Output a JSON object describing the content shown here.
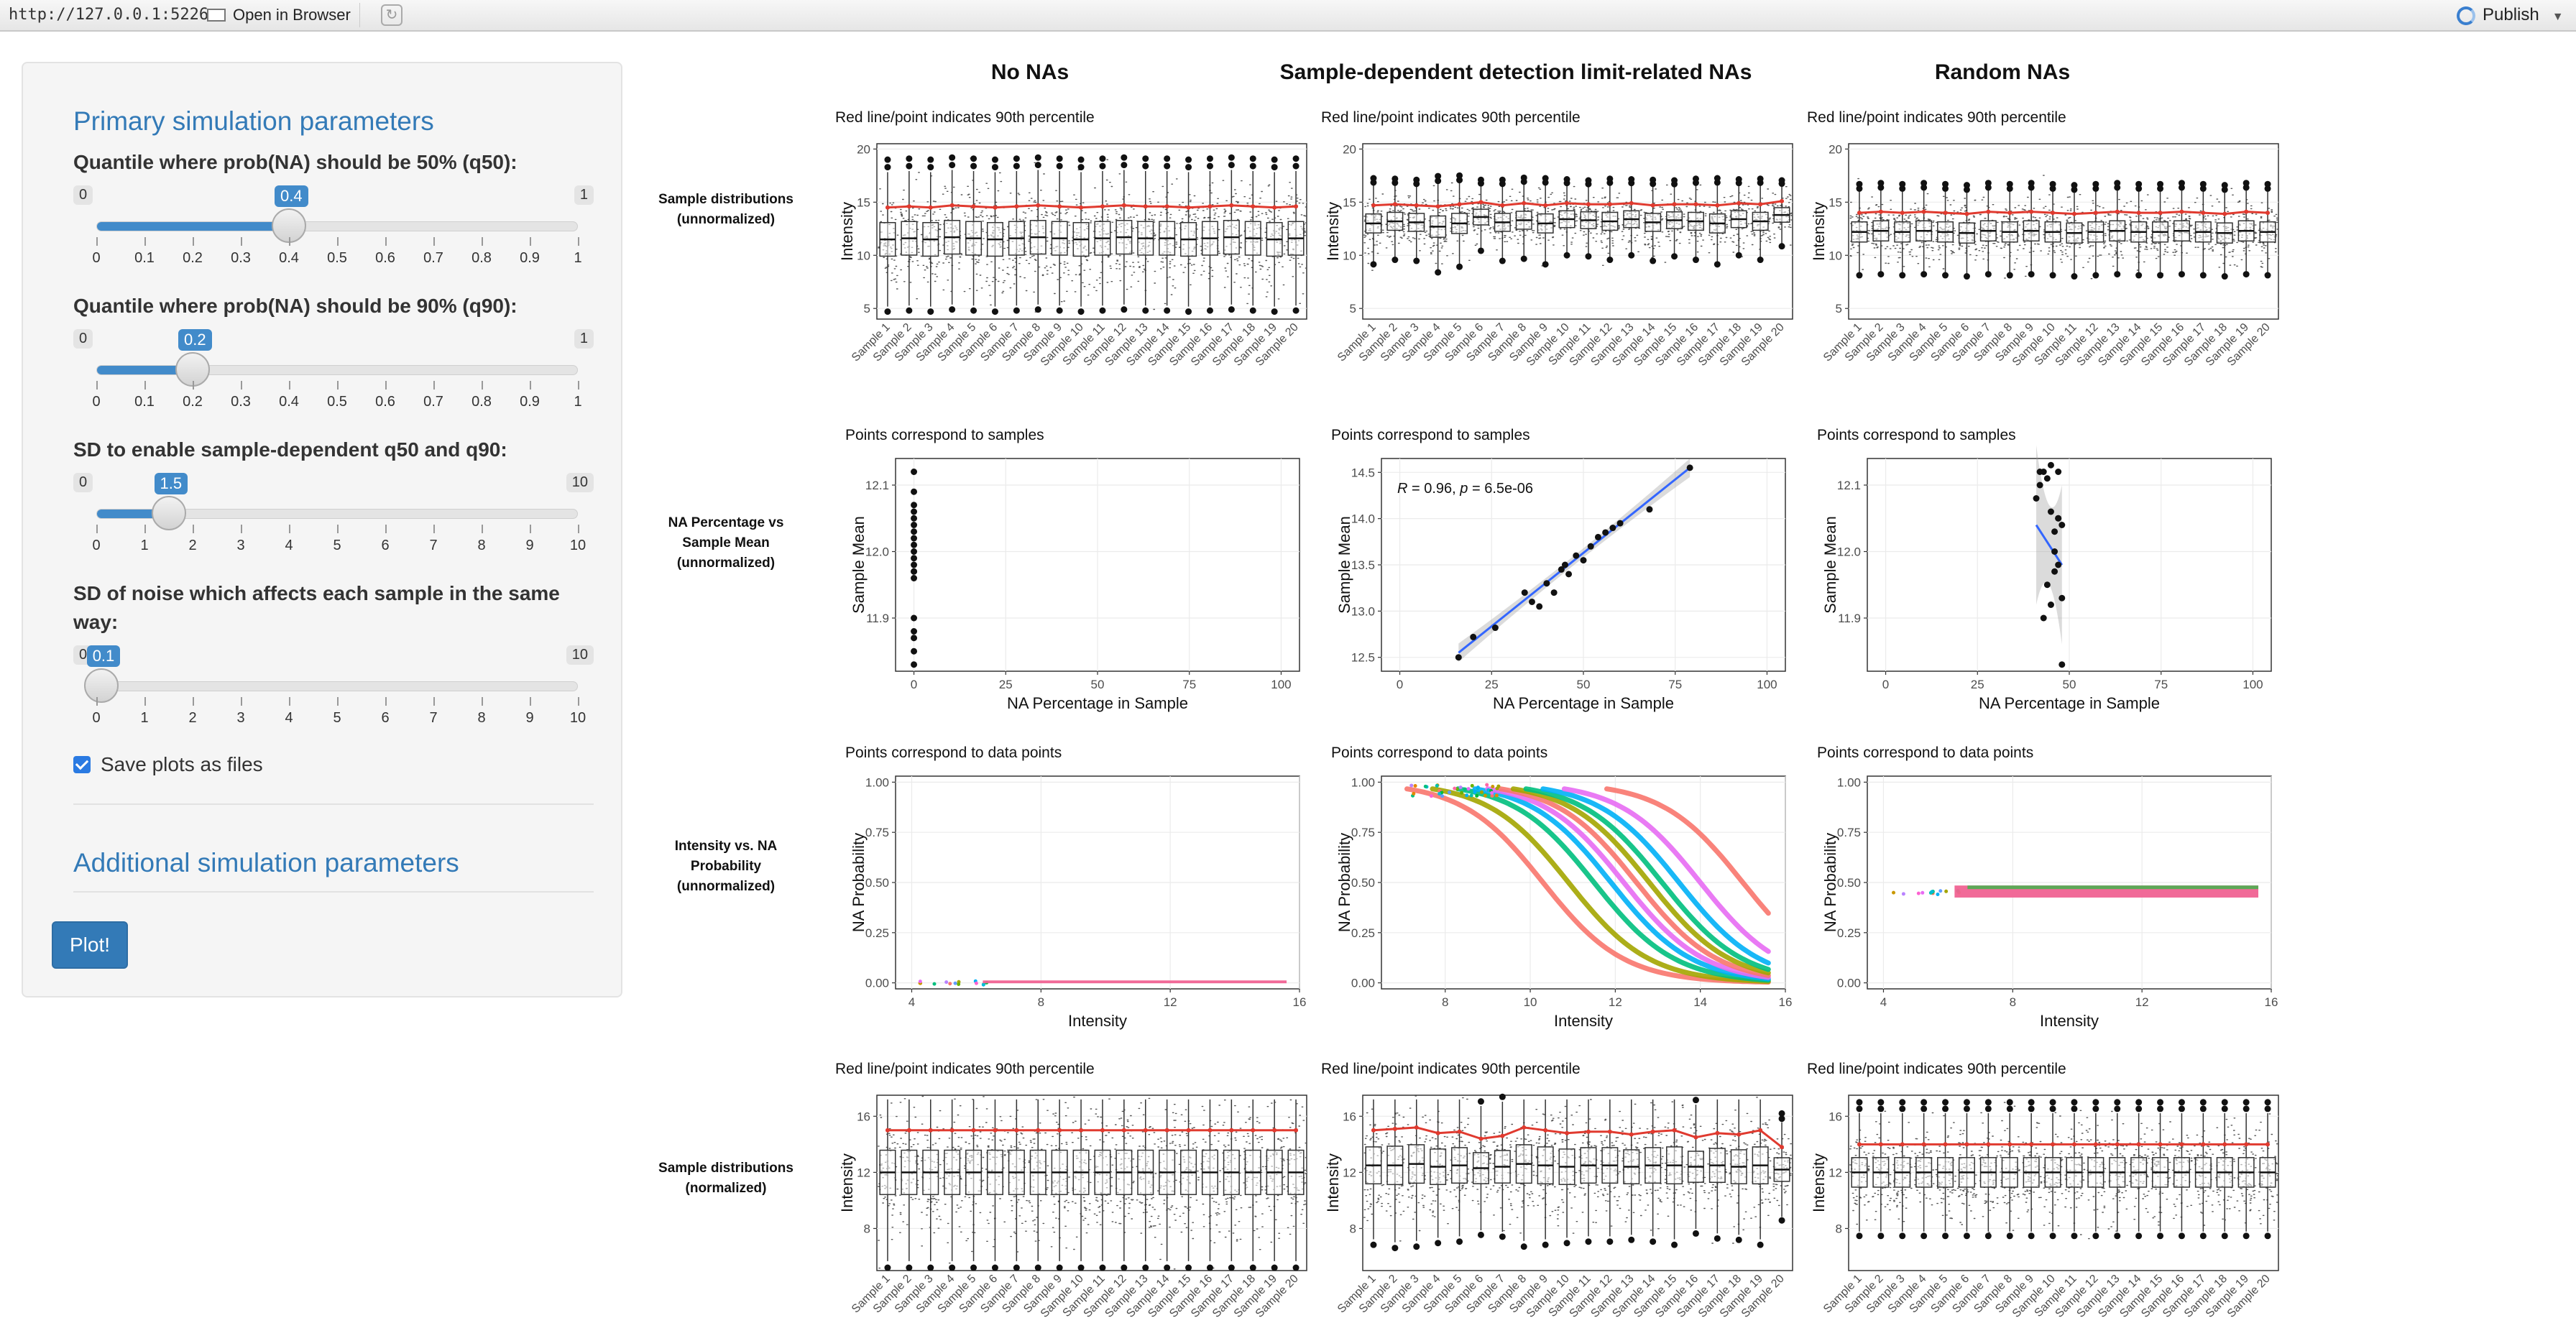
{
  "browser": {
    "url": "http://127.0.0.1:5226",
    "open_in_browser": "Open in Browser",
    "publish": "Publish"
  },
  "sidebar": {
    "primary_title": "Primary simulation parameters",
    "params": [
      {
        "label": "Quantile where prob(NA) should be 50% (q50):",
        "min": "0",
        "max": "1",
        "value": "0.4",
        "value_num": 0.4,
        "range": [
          0,
          1
        ],
        "ticks": [
          "0",
          "0.1",
          "0.2",
          "0.3",
          "0.4",
          "0.5",
          "0.6",
          "0.7",
          "0.8",
          "0.9",
          "1"
        ]
      },
      {
        "label": "Quantile where prob(NA) should be 90% (q90):",
        "min": "0",
        "max": "1",
        "value": "0.2",
        "value_num": 0.2,
        "range": [
          0,
          1
        ],
        "ticks": [
          "0",
          "0.1",
          "0.2",
          "0.3",
          "0.4",
          "0.5",
          "0.6",
          "0.7",
          "0.8",
          "0.9",
          "1"
        ]
      },
      {
        "label": "SD to enable sample-dependent q50 and q90:",
        "min": "0",
        "max": "10",
        "value": "1.5",
        "value_num": 1.5,
        "range": [
          0,
          10
        ],
        "ticks": [
          "0",
          "1",
          "2",
          "3",
          "4",
          "5",
          "6",
          "7",
          "8",
          "9",
          "10"
        ]
      },
      {
        "label": "SD of noise which affects each sample in the same way:",
        "min": "0",
        "max": "10",
        "value": "0.1",
        "value_num": 0.1,
        "range": [
          0,
          10
        ],
        "ticks": [
          "0",
          "1",
          "2",
          "3",
          "4",
          "5",
          "6",
          "7",
          "8",
          "9",
          "10"
        ]
      }
    ],
    "save_plots_label": "Save plots as files",
    "save_plots_checked": true,
    "additional_title": "Additional simulation parameters",
    "plot_button": "Plot!"
  },
  "main": {
    "column_headers": [
      "No NAs",
      "Sample-dependent detection limit-related NAs",
      "Random NAs"
    ],
    "row_labels": [
      "Sample distributions (unnormalized)",
      "NA Percentage vs Sample Mean (unnormalized)",
      "Intensity vs. NA Probability (unnormalized)",
      "Sample distributions (normalized)"
    ],
    "subtitles": {
      "box": "Red line/point indicates 90th percentile",
      "scatter": "Points correspond to samples",
      "prob": "Points correspond to data points"
    },
    "axes": {
      "intensity": "Intensity",
      "sample_mean": "Sample Mean",
      "na_percentage": "NA Percentage in Sample",
      "na_probability": "NA Probability"
    },
    "sample_labels": [
      "Sample 1",
      "Sample 2",
      "Sample 3",
      "Sample 4",
      "Sample 5",
      "Sample 6",
      "Sample 7",
      "Sample 8",
      "Sample 9",
      "Sample 10",
      "Sample 11",
      "Sample 12",
      "Sample 13",
      "Sample 14",
      "Sample 15",
      "Sample 16",
      "Sample 17",
      "Sample 18",
      "Sample 19",
      "Sample 20"
    ],
    "correlation_prefix": "R",
    "correlation_label": " = 0.96, ",
    "correlation_p_prefix": "p",
    "correlation_p_value": " = 6.5e-06"
  },
  "chart_data": [
    {
      "type": "box",
      "row": 1,
      "col": 1,
      "ylim": [
        4,
        20.5
      ],
      "yticks": [
        5,
        10,
        15,
        20
      ],
      "medians": [
        11.5,
        11.6,
        11.5,
        11.7,
        11.6,
        11.5,
        11.6,
        11.7,
        11.6,
        11.5,
        11.6,
        11.7,
        11.6,
        11.6,
        11.5,
        11.6,
        11.7,
        11.6,
        11.5,
        11.6
      ],
      "p90": [
        14.5,
        14.6,
        14.5,
        14.7,
        14.6,
        14.5,
        14.6,
        14.7,
        14.6,
        14.5,
        14.6,
        14.7,
        14.6,
        14.6,
        14.5,
        14.6,
        14.7,
        14.6,
        14.5,
        14.6
      ]
    },
    {
      "type": "box",
      "row": 1,
      "col": 2,
      "ylim": [
        4,
        20.5
      ],
      "yticks": [
        5,
        10,
        15,
        20
      ],
      "medians": [
        13.0,
        13.2,
        13.1,
        12.7,
        13.0,
        13.6,
        13.1,
        13.3,
        13.0,
        13.4,
        13.3,
        13.2,
        13.4,
        13.1,
        13.3,
        13.2,
        13.0,
        13.4,
        13.2,
        13.8
      ],
      "p90": [
        14.7,
        14.8,
        14.7,
        14.6,
        14.8,
        15.0,
        14.7,
        14.9,
        14.7,
        14.9,
        14.8,
        14.8,
        14.9,
        14.7,
        14.8,
        14.8,
        14.7,
        14.9,
        14.8,
        15.1
      ]
    },
    {
      "type": "box",
      "row": 1,
      "col": 3,
      "ylim": [
        4,
        20.5
      ],
      "yticks": [
        5,
        10,
        15,
        20
      ],
      "medians": [
        12.2,
        12.3,
        12.2,
        12.3,
        12.2,
        12.1,
        12.3,
        12.2,
        12.3,
        12.2,
        12.1,
        12.2,
        12.3,
        12.2,
        12.2,
        12.3,
        12.2,
        12.1,
        12.3,
        12.2
      ],
      "p90": [
        14.0,
        14.1,
        14.0,
        14.1,
        14.0,
        13.9,
        14.1,
        14.0,
        14.1,
        14.0,
        13.9,
        14.0,
        14.1,
        14.0,
        14.0,
        14.1,
        14.0,
        13.9,
        14.1,
        14.0
      ]
    },
    {
      "type": "scatter",
      "row": 2,
      "col": 1,
      "xlim": [
        -5,
        105
      ],
      "ylim": [
        11.82,
        12.14
      ],
      "xticks": [
        0,
        25,
        50,
        75,
        100
      ],
      "yticks": [
        11.9,
        12.0,
        12.1
      ],
      "x": [
        0,
        0,
        0,
        0,
        0,
        0,
        0,
        0,
        0,
        0,
        0,
        0,
        0,
        0,
        0,
        0,
        0,
        0,
        0,
        0
      ],
      "y": [
        12.12,
        12.09,
        12.07,
        12.06,
        12.05,
        12.04,
        12.03,
        12.02,
        12.01,
        12.0,
        11.99,
        11.98,
        11.97,
        11.97,
        11.96,
        11.9,
        11.88,
        11.87,
        11.85,
        11.83
      ]
    },
    {
      "type": "scatter",
      "row": 2,
      "col": 2,
      "xlim": [
        -5,
        105
      ],
      "ylim": [
        12.35,
        14.65
      ],
      "xticks": [
        0,
        25,
        50,
        75,
        100
      ],
      "yticks": [
        12.5,
        13.0,
        13.5,
        14.0,
        14.5
      ],
      "x": [
        16,
        20,
        26,
        34,
        36,
        38,
        40,
        42,
        44,
        45,
        46,
        48,
        50,
        52,
        54,
        56,
        58,
        60,
        68,
        79
      ],
      "y": [
        12.5,
        12.72,
        12.82,
        13.2,
        13.1,
        13.05,
        13.3,
        13.2,
        13.45,
        13.5,
        13.4,
        13.6,
        13.55,
        13.7,
        13.8,
        13.85,
        13.9,
        13.95,
        14.1,
        14.55
      ],
      "fit": [
        [
          16,
          12.55
        ],
        [
          79,
          14.55
        ]
      ]
    },
    {
      "type": "scatter",
      "row": 2,
      "col": 3,
      "xlim": [
        -5,
        105
      ],
      "ylim": [
        11.82,
        12.14
      ],
      "xticks": [
        0,
        25,
        50,
        75,
        100
      ],
      "yticks": [
        11.9,
        12.0,
        12.1
      ],
      "x": [
        41,
        42,
        43,
        43,
        44,
        44,
        45,
        45,
        45,
        46,
        46,
        46,
        47,
        47,
        47,
        48,
        48,
        48,
        42,
        47
      ],
      "y": [
        12.08,
        12.1,
        12.12,
        11.9,
        12.11,
        11.95,
        12.13,
        11.92,
        12.06,
        12.03,
        12.0,
        11.97,
        12.12,
        12.05,
        11.98,
        12.04,
        11.93,
        11.83,
        12.12,
        12.05
      ],
      "fit": [
        [
          41,
          12.04
        ],
        [
          48,
          11.98
        ]
      ]
    },
    {
      "type": "line",
      "row": 3,
      "col": 1,
      "xlim": [
        3.5,
        16
      ],
      "ylim": [
        -0.03,
        1.03
      ],
      "xticks": [
        4,
        8,
        12,
        16
      ],
      "yticks": [
        0.0,
        0.25,
        0.5,
        0.75,
        1.0
      ],
      "series": [
        {
          "x": [
            4.2,
            15.6
          ],
          "y": [
            0,
            0
          ]
        }
      ]
    },
    {
      "type": "line",
      "row": 3,
      "col": 2,
      "xlim": [
        6.5,
        16
      ],
      "ylim": [
        -0.03,
        1.03
      ],
      "xticks": [
        8,
        10,
        12,
        14,
        16
      ],
      "yticks": [
        0.0,
        0.25,
        0.5,
        0.75,
        1.0
      ],
      "series": [
        {
          "q50": 10.3
        },
        {
          "q50": 10.9
        },
        {
          "q50": 11.5
        },
        {
          "q50": 11.9
        },
        {
          "q50": 12.2
        },
        {
          "q50": 12.5
        },
        {
          "q50": 12.8
        },
        {
          "q50": 13.1
        },
        {
          "q50": 13.5
        },
        {
          "q50": 14.0
        },
        {
          "q50": 15.0
        }
      ]
    },
    {
      "type": "line",
      "row": 3,
      "col": 3,
      "xlim": [
        3.5,
        16
      ],
      "ylim": [
        -0.03,
        1.03
      ],
      "xticks": [
        4,
        8,
        12,
        16
      ],
      "yticks": [
        0.0,
        0.25,
        0.5,
        0.75,
        1.0
      ],
      "series": [
        {
          "x": [
            4.2,
            15.6
          ],
          "y": [
            0.45,
            0.45
          ]
        }
      ]
    },
    {
      "type": "box",
      "row": 4,
      "col": 1,
      "ylim": [
        5,
        17.5
      ],
      "yticks": [
        8,
        12,
        16
      ],
      "medians": [
        12,
        12,
        12,
        12,
        12,
        12,
        12,
        12,
        12,
        12,
        12,
        12,
        12,
        12,
        12,
        12,
        12,
        12,
        12,
        12
      ],
      "p90": [
        15,
        15,
        15,
        15,
        15,
        15,
        15,
        15,
        15,
        15,
        15,
        15,
        15,
        15,
        15,
        15,
        15,
        15,
        15,
        15
      ]
    },
    {
      "type": "box",
      "row": 4,
      "col": 2,
      "ylim": [
        5,
        17.5
      ],
      "yticks": [
        8,
        12,
        16
      ],
      "medians": [
        12.5,
        12.5,
        12.6,
        12.4,
        12.5,
        12.3,
        12.4,
        12.6,
        12.5,
        12.4,
        12.5,
        12.5,
        12.4,
        12.5,
        12.5,
        12.4,
        12.5,
        12.4,
        12.5,
        12.2
      ],
      "p90": [
        15.0,
        15.1,
        15.2,
        14.8,
        14.9,
        14.4,
        14.6,
        15.2,
        15.0,
        14.8,
        14.9,
        14.9,
        14.7,
        14.9,
        15.0,
        14.5,
        14.8,
        14.7,
        15.0,
        13.8
      ]
    },
    {
      "type": "box",
      "row": 4,
      "col": 3,
      "ylim": [
        5,
        17.5
      ],
      "yticks": [
        8,
        12,
        16
      ],
      "medians": [
        12,
        12,
        12,
        12,
        12,
        12,
        12,
        12,
        12,
        12,
        12,
        12,
        12,
        12,
        12,
        12,
        12,
        12,
        12,
        12
      ],
      "p90": [
        14,
        14,
        14,
        14,
        14,
        14,
        14,
        14,
        14,
        14,
        14,
        14,
        14,
        14,
        14,
        14,
        14,
        14,
        14,
        14
      ]
    }
  ]
}
